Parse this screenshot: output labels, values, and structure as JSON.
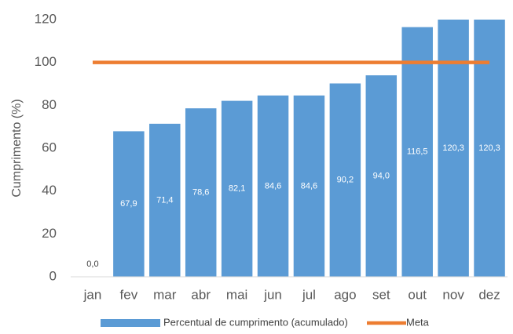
{
  "chart_data": {
    "type": "bar",
    "y_label": "Cumprimento (%)",
    "categories": [
      "jan",
      "fev",
      "mar",
      "abr",
      "mai",
      "jun",
      "jul",
      "ago",
      "set",
      "out",
      "nov",
      "dez"
    ],
    "series": [
      {
        "name": "Percentual de cumprimento (acumulado)",
        "type": "bar",
        "color": "#5b9bd5",
        "values": [
          0.0,
          67.9,
          71.4,
          78.6,
          82.1,
          84.6,
          84.6,
          90.2,
          94.0,
          116.5,
          120.3,
          120.3
        ],
        "value_labels": [
          "0,0",
          "67,9",
          "71,4",
          "78,6",
          "82,1",
          "84,6",
          "84,6",
          "90,2",
          "94,0",
          "116,5",
          "120,3",
          "120,3"
        ]
      },
      {
        "name": "Meta",
        "type": "line",
        "color": "#ed7d31",
        "values": [
          100,
          100,
          100,
          100,
          100,
          100,
          100,
          100,
          100,
          100,
          100,
          100
        ]
      }
    ],
    "ylim": [
      0,
      120
    ],
    "yticks": [
      0,
      20,
      40,
      60,
      80,
      100,
      120
    ],
    "grid": false
  }
}
